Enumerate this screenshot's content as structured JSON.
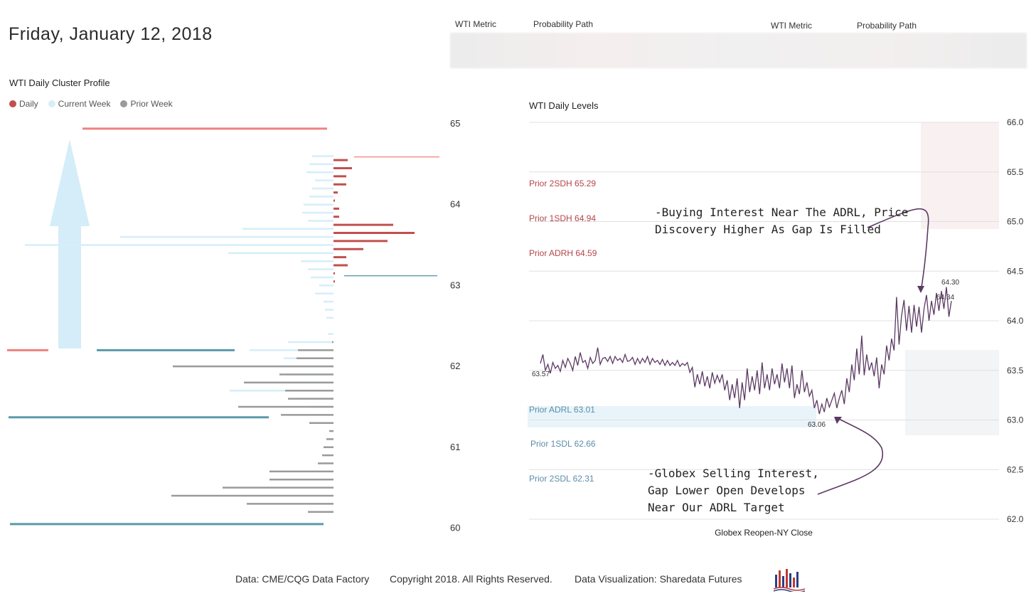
{
  "header": {
    "date": "Friday, January 12, 2018"
  },
  "metrics": {
    "labels": [
      "WTI Metric",
      "Probability Path",
      "WTI Metric",
      "Probability Path"
    ]
  },
  "profile": {
    "title": "WTI Daily Cluster Profile",
    "legend": [
      {
        "label": "Daily",
        "color": "#c0504d"
      },
      {
        "label": "Current Week",
        "color": "#d6eef8"
      },
      {
        "label": "Prior Week",
        "color": "#9a9a9a"
      }
    ],
    "price_ticks": [
      "65",
      "64",
      "63",
      "62",
      "61",
      "60"
    ]
  },
  "levels": {
    "title": "WTI Daily Levels",
    "xlabel": "Globex Reopen-NY Close",
    "level_labels": {
      "prior_2sdh": "Prior 2SDH 65.29",
      "prior_1sdh": "Prior 1SDH 64.94",
      "prior_adrh": "Prior ADRH 64.59",
      "prior_adrl": "Prior ADRL 63.01",
      "prior_1sdl": "Prior 1SDL 62.66",
      "prior_2sdl": "Prior 2SDL 62.31"
    },
    "annotations": {
      "top": "-Buying Interest Near The ADRL, Price\nDiscovery Higher As Gap Is Filled",
      "bottom": "-Globex Selling Interest,\nGap Lower Open Develops\nNear Our ADRL Target"
    }
  },
  "chart_data": [
    {
      "type": "bar",
      "orientation": "horizontal",
      "title": "WTI Daily Cluster Profile",
      "ylim": [
        60,
        65
      ],
      "series": [
        {
          "name": "Daily",
          "color": "#c0504d",
          "prices": [
            64.55,
            64.45,
            64.35,
            64.25,
            64.15,
            64.05,
            63.95,
            63.85,
            63.75,
            63.65,
            63.55,
            63.45,
            63.35,
            63.25,
            63.15,
            63.05
          ],
          "values": [
            20,
            26,
            18,
            18,
            6,
            2,
            8,
            8,
            84,
            114,
            76,
            42,
            18,
            20,
            2,
            2
          ]
        },
        {
          "name": "Current Week",
          "color": "#d6eef8",
          "prices": [
            64.6,
            64.5,
            64.4,
            64.3,
            64.2,
            64.1,
            64.0,
            63.9,
            63.8,
            63.7,
            63.6,
            63.5,
            63.4,
            63.3,
            63.2,
            63.1,
            63.0,
            62.9,
            62.8,
            62.7,
            62.6,
            62.4,
            62.3,
            62.2,
            62.1,
            62.0,
            61.9,
            61.8,
            61.7,
            61.6,
            61.5
          ],
          "values": [
            30,
            34,
            38,
            26,
            30,
            34,
            42,
            44,
            36,
            128,
            300,
            434,
            148,
            46,
            36,
            32,
            20,
            26,
            14,
            12,
            10,
            8,
            64,
            118,
            70,
            74,
            66,
            62,
            146,
            64,
            34
          ]
        },
        {
          "name": "Prior Week",
          "color": "#9a9a9a",
          "prices": [
            62.3,
            62.2,
            62.1,
            62.0,
            61.9,
            61.8,
            61.7,
            61.6,
            61.5,
            61.4,
            61.3,
            61.2,
            61.1,
            61.0,
            60.9,
            60.8,
            60.7,
            60.6,
            60.5,
            60.4,
            60.3,
            60.2,
            60.1,
            60.0
          ],
          "values": [
            2,
            50,
            52,
            226,
            76,
            126,
            68,
            64,
            134,
            74,
            34,
            6,
            10,
            14,
            16,
            22,
            90,
            90,
            156,
            228,
            122,
            36,
            0,
            0
          ]
        }
      ],
      "level_lines": [
        {
          "price": 64.94,
          "color": "#f08080"
        },
        {
          "price": 64.59,
          "color": "#f08080"
        },
        {
          "price": 63.12,
          "color": "#4a90a4"
        },
        {
          "price": 62.2,
          "color": "#f08080"
        },
        {
          "price": 62.2,
          "color": "#5a9aaa"
        },
        {
          "price": 61.37,
          "color": "#5a9aaa"
        },
        {
          "price": 60.05,
          "color": "#5a9aaa"
        }
      ]
    },
    {
      "type": "line",
      "title": "WTI Daily Levels",
      "xlabel": "Globex Reopen-NY Close",
      "ylim": [
        62.0,
        66.0
      ],
      "yticks": [
        "66.0",
        "65.5",
        "65.0",
        "64.5",
        "64.0",
        "63.5",
        "63.0",
        "62.5",
        "62.0"
      ],
      "levels": {
        "prior_2sdh": 65.29,
        "prior_1sdh": 64.94,
        "prior_adrh": 64.59,
        "prior_adrl": 63.01,
        "prior_1sdl": 62.66,
        "prior_2sdl": 62.31
      },
      "data_labels": [
        "63.57",
        "63.06",
        "64.30",
        "64.34"
      ],
      "series": [
        {
          "name": "WTI",
          "color": "#5b3a63",
          "values": [
            63.57,
            63.66,
            63.5,
            63.56,
            63.47,
            63.58,
            63.52,
            63.55,
            63.49,
            63.6,
            63.53,
            63.62,
            63.57,
            63.5,
            63.64,
            63.55,
            63.68,
            63.58,
            63.6,
            63.52,
            63.63,
            63.57,
            63.6,
            63.73,
            63.56,
            63.62,
            63.63,
            63.59,
            63.64,
            63.57,
            63.64,
            63.6,
            63.62,
            63.58,
            63.66,
            63.59,
            63.6,
            63.63,
            63.56,
            63.62,
            63.57,
            63.62,
            63.58,
            63.64,
            63.56,
            63.62,
            63.58,
            63.6,
            63.56,
            63.61,
            63.55,
            63.6,
            63.55,
            63.58,
            63.55,
            63.6,
            63.54,
            63.57,
            63.55,
            63.58,
            63.48,
            63.53,
            63.33,
            63.46,
            63.36,
            63.49,
            63.34,
            63.44,
            63.32,
            63.48,
            63.37,
            63.45,
            63.38,
            63.46,
            63.3,
            63.4,
            63.2,
            63.36,
            63.22,
            63.42,
            63.12,
            63.38,
            63.2,
            63.52,
            63.28,
            63.44,
            63.3,
            63.5,
            63.26,
            63.58,
            63.32,
            63.46,
            63.3,
            63.52,
            63.36,
            63.46,
            63.32,
            63.57,
            63.38,
            63.52,
            63.32,
            63.55,
            63.22,
            63.36,
            63.26,
            63.5,
            63.28,
            63.38,
            63.24,
            63.3,
            63.12,
            63.2,
            63.06,
            63.16,
            63.08,
            63.22,
            63.13,
            63.2,
            63.27,
            63.12,
            63.22,
            63.3,
            63.16,
            63.42,
            63.28,
            63.56,
            63.4,
            63.72,
            63.46,
            63.85,
            63.45,
            63.66,
            63.5,
            63.58,
            63.44,
            63.63,
            63.32,
            63.56,
            63.46,
            63.75,
            63.6,
            63.82,
            63.7,
            64.24,
            63.76,
            64.05,
            64.21,
            63.9,
            64.15,
            63.88,
            64.16,
            63.94,
            64.14,
            63.88,
            64.12,
            64.26,
            64.0,
            64.2,
            64.06,
            64.28,
            64.1,
            64.3,
            64.12,
            64.34,
            64.04,
            64.2
          ]
        }
      ]
    }
  ],
  "footer": {
    "data_source": "Data: CME/CQG Data Factory",
    "copyright": "Copyright 2018. All Rights Reserved.",
    "visualization": "Data Visualization: Sharedata Futures"
  }
}
